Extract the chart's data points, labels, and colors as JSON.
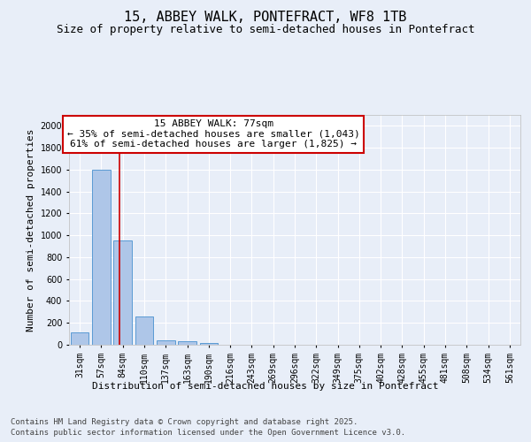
{
  "title": "15, ABBEY WALK, PONTEFRACT, WF8 1TB",
  "subtitle": "Size of property relative to semi-detached houses in Pontefract",
  "xlabel": "Distribution of semi-detached houses by size in Pontefract",
  "ylabel": "Number of semi-detached properties",
  "categories": [
    "31sqm",
    "57sqm",
    "84sqm",
    "110sqm",
    "137sqm",
    "163sqm",
    "190sqm",
    "216sqm",
    "243sqm",
    "269sqm",
    "296sqm",
    "322sqm",
    "349sqm",
    "375sqm",
    "402sqm",
    "428sqm",
    "455sqm",
    "481sqm",
    "508sqm",
    "534sqm",
    "561sqm"
  ],
  "values": [
    110,
    1600,
    950,
    260,
    40,
    35,
    20,
    0,
    0,
    0,
    0,
    0,
    0,
    0,
    0,
    0,
    0,
    0,
    0,
    0,
    0
  ],
  "bar_color": "#aec6e8",
  "bar_edge_color": "#5a9bd4",
  "vline_color": "#cc0000",
  "annotation_title": "15 ABBEY WALK: 77sqm",
  "annotation_line1": "← 35% of semi-detached houses are smaller (1,043)",
  "annotation_line2": "61% of semi-detached houses are larger (1,825) →",
  "annotation_box_color": "#cc0000",
  "ylim": [
    0,
    2100
  ],
  "yticks": [
    0,
    200,
    400,
    600,
    800,
    1000,
    1200,
    1400,
    1600,
    1800,
    2000
  ],
  "footer_line1": "Contains HM Land Registry data © Crown copyright and database right 2025.",
  "footer_line2": "Contains public sector information licensed under the Open Government Licence v3.0.",
  "bg_color": "#e8eef8",
  "plot_bg_color": "#e8eef8",
  "grid_color": "#ffffff",
  "title_fontsize": 11,
  "subtitle_fontsize": 9,
  "axis_label_fontsize": 8,
  "tick_fontsize": 7,
  "annotation_fontsize": 8,
  "footer_fontsize": 6.5
}
